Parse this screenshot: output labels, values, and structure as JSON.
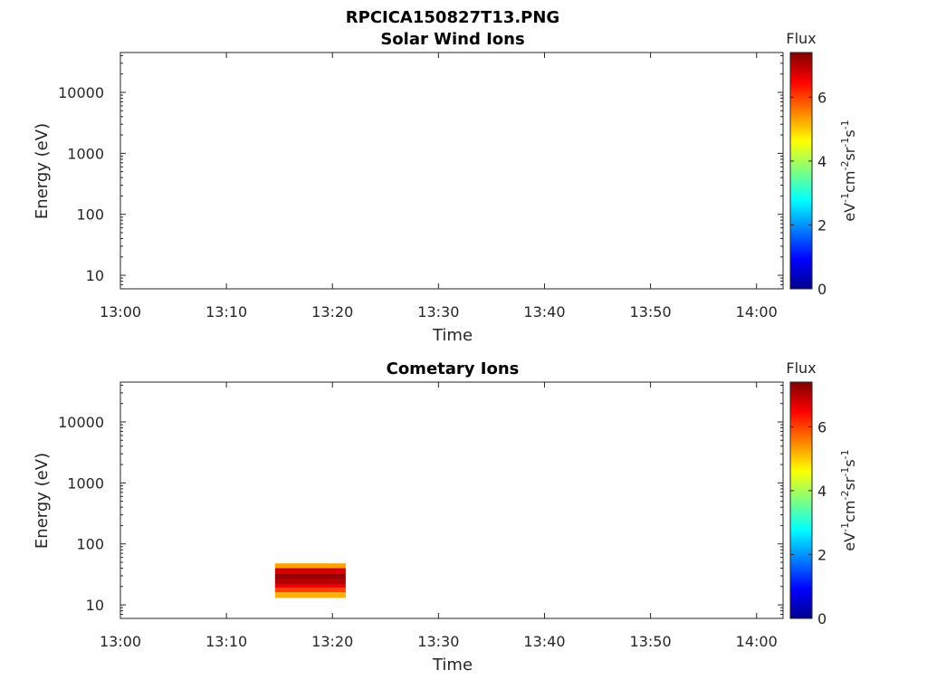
{
  "figure_title": "RPCICA150827T13.PNG",
  "colorbar": {
    "label": "Flux",
    "unit_label": "eV-1cm-2sr-1s-1",
    "ticks": [
      "0",
      "2",
      "4",
      "6"
    ],
    "range": [
      0,
      7.4
    ],
    "colormap": "jet"
  },
  "chart_data": [
    {
      "type": "heatmap",
      "title": "Solar Wind Ions",
      "xlabel": "Time",
      "ylabel": "Energy (eV)",
      "x_ticks": [
        "13:00",
        "13:10",
        "13:20",
        "13:30",
        "13:40",
        "13:50",
        "14:00"
      ],
      "x_range_minutes": [
        0,
        62.5
      ],
      "y_scale": "log",
      "y_ticks": [
        "10",
        "100",
        "1000",
        "10000"
      ],
      "y_range": [
        6,
        45000
      ],
      "cells": []
    },
    {
      "type": "heatmap",
      "title": "Cometary Ions",
      "xlabel": "Time",
      "ylabel": "Energy (eV)",
      "x_ticks": [
        "13:00",
        "13:10",
        "13:20",
        "13:30",
        "13:40",
        "13:50",
        "14:00"
      ],
      "x_range_minutes": [
        0,
        62.5
      ],
      "y_scale": "log",
      "y_ticks": [
        "10",
        "100",
        "1000",
        "10000"
      ],
      "y_range": [
        6,
        45000
      ],
      "cells": [
        {
          "t_start": "13:14:35",
          "t_end": "13:21:15",
          "e_low": 40,
          "e_high": 48,
          "flux": 5.3
        },
        {
          "t_start": "13:14:35",
          "t_end": "13:21:15",
          "e_low": 33,
          "e_high": 40,
          "flux": 6.8
        },
        {
          "t_start": "13:14:35",
          "t_end": "13:21:15",
          "e_low": 27,
          "e_high": 33,
          "flux": 7.2
        },
        {
          "t_start": "13:14:35",
          "t_end": "13:21:15",
          "e_low": 22,
          "e_high": 27,
          "flux": 7.0
        },
        {
          "t_start": "13:14:35",
          "t_end": "13:21:15",
          "e_low": 19,
          "e_high": 22,
          "flux": 6.6
        },
        {
          "t_start": "13:14:35",
          "t_end": "13:21:15",
          "e_low": 16,
          "e_high": 19,
          "flux": 6.0
        },
        {
          "t_start": "13:14:35",
          "t_end": "13:21:15",
          "e_low": 13,
          "e_high": 16,
          "flux": 5.2
        }
      ]
    }
  ]
}
